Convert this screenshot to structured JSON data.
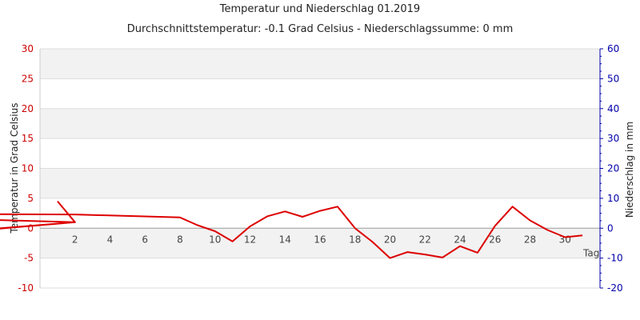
{
  "chart_data": {
    "type": "line",
    "title": "Temperatur und Niederschlag 01.2019",
    "subtitle": "Durchschnittstemperatur: -0.1 Grad Celsius   -   Niederschlagssumme: 0 mm",
    "xlabel": "Tag",
    "ylabel_left": "Temperatur in Grad Celsius",
    "ylabel_right": "Niederschlag in mm",
    "xlim": [
      0,
      32
    ],
    "ylim_left": [
      -10,
      30
    ],
    "ylim_right": [
      -20,
      60
    ],
    "x_ticks": [
      2,
      4,
      6,
      8,
      10,
      12,
      14,
      16,
      18,
      20,
      22,
      24,
      26,
      28,
      30
    ],
    "y_ticks_left": [
      -10,
      -5,
      0,
      5,
      10,
      15,
      20,
      25,
      30
    ],
    "y_ticks_right": [
      -20,
      -10,
      0,
      10,
      20,
      30,
      40,
      50,
      60
    ],
    "grid": true,
    "colors": {
      "temperature": "#dd0000",
      "left_axis": "#cc0000",
      "right_axis": "#0000aa",
      "band": "#f2f2f2"
    },
    "series": [
      {
        "axis": "left",
        "values": [
          [
            1,
            4.5
          ],
          [
            2,
            1.0
          ],
          [
            -10,
            -2.0
          ],
          [
            -3,
            -0.2
          ],
          [
            2,
            1.0
          ],
          [
            -16,
            2.5
          ],
          [
            2,
            2.3
          ],
          [
            8,
            1.8
          ],
          [
            9,
            0.5
          ],
          [
            10,
            -0.5
          ],
          [
            11,
            -2.2
          ],
          [
            12,
            0.3
          ],
          [
            13,
            2.0
          ],
          [
            14,
            2.8
          ],
          [
            15,
            1.9
          ],
          [
            16,
            2.9
          ],
          [
            17,
            3.6
          ],
          [
            18,
            0.0
          ],
          [
            19,
            -2.3
          ],
          [
            20,
            -5.0
          ],
          [
            21,
            -4.0
          ],
          [
            22,
            -4.4
          ],
          [
            23,
            -4.9
          ],
          [
            24,
            -3.0
          ],
          [
            25,
            -4.1
          ],
          [
            26,
            0.4
          ],
          [
            27,
            3.6
          ],
          [
            28,
            1.3
          ],
          [
            29,
            -0.3
          ],
          [
            30,
            -1.5
          ],
          [
            31,
            -1.2
          ]
        ]
      }
    ]
  }
}
